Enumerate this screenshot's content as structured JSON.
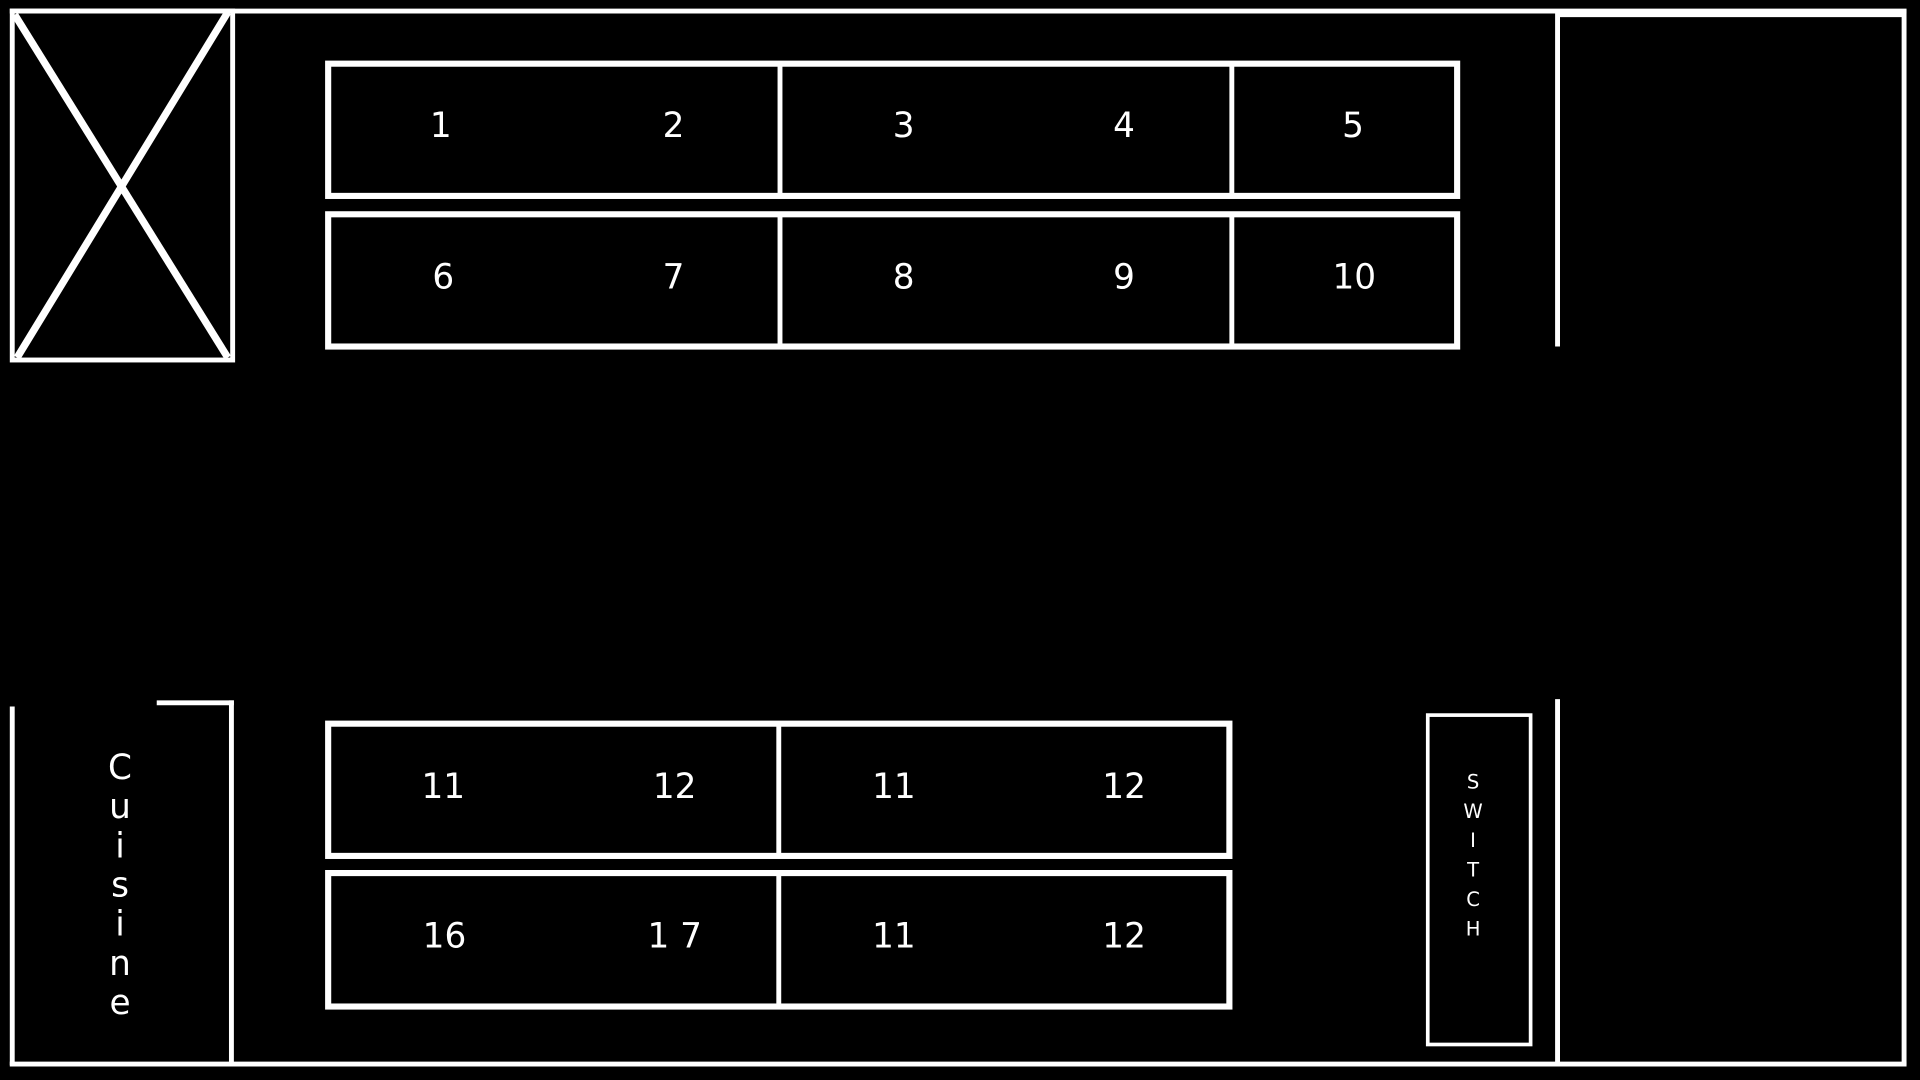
{
  "colors": {
    "background": "#000000",
    "lines": "#ffffff"
  },
  "tables": {
    "row1": [
      "1",
      "2",
      "3",
      "4",
      "5"
    ],
    "row2": [
      "6",
      "7",
      "8",
      "9",
      "10"
    ],
    "row3": [
      "11",
      "12",
      "11",
      "12"
    ],
    "row4": [
      "16",
      "1 7",
      "11",
      "12"
    ]
  },
  "kitchen": {
    "label": "Cuisine"
  },
  "switch": {
    "label": "SWITCH"
  },
  "blocked_area_icon": "x-cross"
}
